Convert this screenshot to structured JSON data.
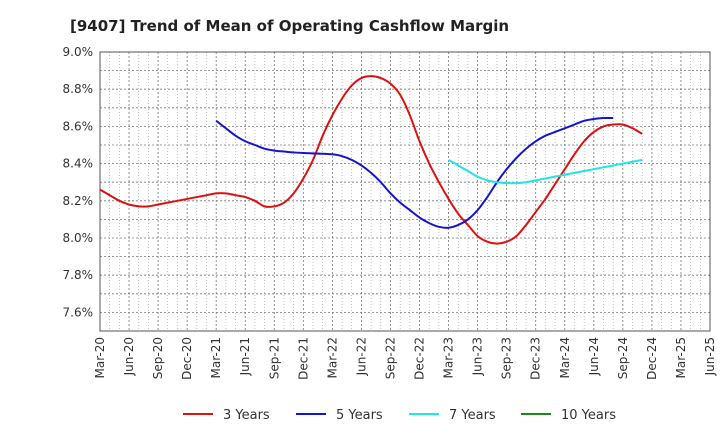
{
  "chart_data": {
    "type": "line",
    "title": "[9407]  Trend of Mean of Operating Cashflow Margin",
    "xlabel": "",
    "ylabel": "",
    "x_ticks": [
      "Mar-20",
      "Jun-20",
      "Sep-20",
      "Dec-20",
      "Mar-21",
      "Jun-21",
      "Sep-21",
      "Dec-21",
      "Mar-22",
      "Jun-22",
      "Sep-22",
      "Dec-22",
      "Mar-23",
      "Jun-23",
      "Sep-23",
      "Dec-23",
      "Mar-24",
      "Jun-24",
      "Sep-24",
      "Dec-24",
      "Mar-25",
      "Jun-25"
    ],
    "y_ticks": [
      "7.6%",
      "7.8%",
      "8.0%",
      "8.2%",
      "8.4%",
      "8.6%",
      "8.8%",
      "9.0%"
    ],
    "ylim": [
      7.5,
      9.0
    ],
    "grid": true,
    "legend_position": "bottom",
    "series": [
      {
        "name": "3 Years",
        "color": "#dd1111",
        "points": [
          [
            "Mar-20",
            8.26
          ],
          [
            "Apr-20",
            8.23
          ],
          [
            "May-20",
            8.2
          ],
          [
            "Jun-20",
            8.18
          ],
          [
            "Jul-20",
            8.17
          ],
          [
            "Aug-20",
            8.17
          ],
          [
            "Sep-20",
            8.18
          ],
          [
            "Oct-20",
            8.19
          ],
          [
            "Nov-20",
            8.2
          ],
          [
            "Dec-20",
            8.21
          ],
          [
            "Jan-21",
            8.22
          ],
          [
            "Feb-21",
            8.23
          ],
          [
            "Mar-21",
            8.24
          ],
          [
            "Apr-21",
            8.24
          ],
          [
            "May-21",
            8.23
          ],
          [
            "Jun-21",
            8.22
          ],
          [
            "Jul-21",
            8.2
          ],
          [
            "Aug-21",
            8.17
          ],
          [
            "Sep-21",
            8.17
          ],
          [
            "Oct-21",
            8.19
          ],
          [
            "Nov-21",
            8.24
          ],
          [
            "Dec-21",
            8.32
          ],
          [
            "Jan-22",
            8.42
          ],
          [
            "Feb-22",
            8.55
          ],
          [
            "Mar-22",
            8.66
          ],
          [
            "Apr-22",
            8.75
          ],
          [
            "May-22",
            8.82
          ],
          [
            "Jun-22",
            8.86
          ],
          [
            "Jul-22",
            8.87
          ],
          [
            "Aug-22",
            8.86
          ],
          [
            "Sep-22",
            8.83
          ],
          [
            "Oct-22",
            8.77
          ],
          [
            "Nov-22",
            8.66
          ],
          [
            "Dec-22",
            8.52
          ],
          [
            "Jan-23",
            8.4
          ],
          [
            "Feb-23",
            8.3
          ],
          [
            "Mar-23",
            8.21
          ],
          [
            "Apr-23",
            8.13
          ],
          [
            "May-23",
            8.07
          ],
          [
            "Jun-23",
            8.01
          ],
          [
            "Jul-23",
            7.98
          ],
          [
            "Aug-23",
            7.97
          ],
          [
            "Sep-23",
            7.98
          ],
          [
            "Oct-23",
            8.01
          ],
          [
            "Nov-23",
            8.07
          ],
          [
            "Dec-23",
            8.14
          ],
          [
            "Jan-24",
            8.21
          ],
          [
            "Feb-24",
            8.29
          ],
          [
            "Mar-24",
            8.37
          ],
          [
            "Apr-24",
            8.45
          ],
          [
            "May-24",
            8.52
          ],
          [
            "Jun-24",
            8.57
          ],
          [
            "Jul-24",
            8.6
          ],
          [
            "Aug-24",
            8.61
          ],
          [
            "Sep-24",
            8.61
          ],
          [
            "Oct-24",
            8.59
          ],
          [
            "Nov-24",
            8.56
          ]
        ]
      },
      {
        "name": "5 Years",
        "color": "#1515cc",
        "points": [
          [
            "Mar-21",
            8.63
          ],
          [
            "Apr-21",
            8.59
          ],
          [
            "May-21",
            8.55
          ],
          [
            "Jun-21",
            8.52
          ],
          [
            "Jul-21",
            8.5
          ],
          [
            "Aug-21",
            8.48
          ],
          [
            "Sep-21",
            8.47
          ],
          [
            "Oct-21",
            8.465
          ],
          [
            "Nov-21",
            8.46
          ],
          [
            "Dec-21",
            8.457
          ],
          [
            "Jan-22",
            8.455
          ],
          [
            "Feb-22",
            8.453
          ],
          [
            "Mar-22",
            8.45
          ],
          [
            "Apr-22",
            8.44
          ],
          [
            "May-22",
            8.42
          ],
          [
            "Jun-22",
            8.39
          ],
          [
            "Jul-22",
            8.35
          ],
          [
            "Aug-22",
            8.3
          ],
          [
            "Sep-22",
            8.24
          ],
          [
            "Oct-22",
            8.19
          ],
          [
            "Nov-22",
            8.15
          ],
          [
            "Dec-22",
            8.11
          ],
          [
            "Jan-23",
            8.08
          ],
          [
            "Feb-23",
            8.06
          ],
          [
            "Mar-23",
            8.055
          ],
          [
            "Apr-23",
            8.07
          ],
          [
            "May-23",
            8.1
          ],
          [
            "Jun-23",
            8.15
          ],
          [
            "Jul-23",
            8.22
          ],
          [
            "Aug-23",
            8.3
          ],
          [
            "Sep-23",
            8.37
          ],
          [
            "Oct-23",
            8.43
          ],
          [
            "Nov-23",
            8.48
          ],
          [
            "Dec-23",
            8.52
          ],
          [
            "Jan-24",
            8.55
          ],
          [
            "Feb-24",
            8.57
          ],
          [
            "Mar-24",
            8.59
          ],
          [
            "Apr-24",
            8.61
          ],
          [
            "May-24",
            8.63
          ],
          [
            "Jun-24",
            8.64
          ],
          [
            "Jul-24",
            8.645
          ],
          [
            "Aug-24",
            8.645
          ]
        ]
      },
      {
        "name": "7 Years",
        "color": "#22e5e5",
        "points": [
          [
            "Mar-23",
            8.42
          ],
          [
            "Apr-23",
            8.39
          ],
          [
            "May-23",
            8.36
          ],
          [
            "Jun-23",
            8.33
          ],
          [
            "Jul-23",
            8.31
          ],
          [
            "Aug-23",
            8.3
          ],
          [
            "Sep-23",
            8.295
          ],
          [
            "Oct-23",
            8.295
          ],
          [
            "Nov-23",
            8.3
          ],
          [
            "Dec-23",
            8.31
          ],
          [
            "Jan-24",
            8.32
          ],
          [
            "Feb-24",
            8.33
          ],
          [
            "Mar-24",
            8.34
          ],
          [
            "Apr-24",
            8.35
          ],
          [
            "May-24",
            8.36
          ],
          [
            "Jun-24",
            8.37
          ],
          [
            "Jul-24",
            8.38
          ],
          [
            "Aug-24",
            8.39
          ],
          [
            "Sep-24",
            8.4
          ],
          [
            "Oct-24",
            8.41
          ],
          [
            "Nov-24",
            8.42
          ]
        ]
      },
      {
        "name": "10 Years",
        "color": "#1a8a1a",
        "points": []
      }
    ]
  }
}
